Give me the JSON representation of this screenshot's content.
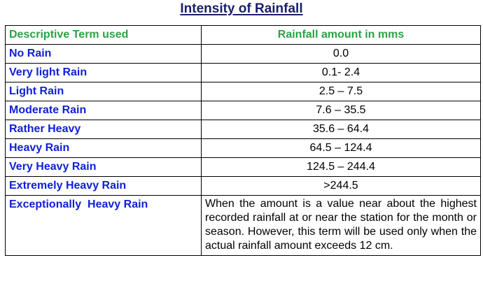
{
  "title": "Intensity of Rainfall",
  "table": {
    "headers": [
      "Descriptive Term used",
      "Rainfall amount in mms"
    ],
    "rows": [
      {
        "term": "No Rain",
        "amount": "0.0"
      },
      {
        "term": "Very light Rain",
        "amount": "0.1- 2.4"
      },
      {
        "term": "Light Rain",
        "amount": "2.5 – 7.5"
      },
      {
        "term": "Moderate Rain",
        "amount": "7.6 – 35.5"
      },
      {
        "term": "Rather Heavy",
        "amount": "35.6 – 64.4"
      },
      {
        "term": "Heavy Rain",
        "amount": "64.5 – 124.4"
      },
      {
        "term": "Very Heavy Rain",
        "amount": "124.5 – 244.4"
      },
      {
        "term": "Extremely Heavy Rain",
        "amount": ">244.5"
      },
      {
        "term": "Exceptionally  Heavy Rain",
        "amount": "When the amount is a value near about the highest recorded rainfall at or near the station for the month or season. However, this term will be used only when the actual rainfall amount exceeds 12 cm."
      }
    ]
  },
  "colors": {
    "title": "#1a1f6b",
    "header": "#2aa345",
    "term": "#1020d8",
    "amount": "#000000"
  }
}
